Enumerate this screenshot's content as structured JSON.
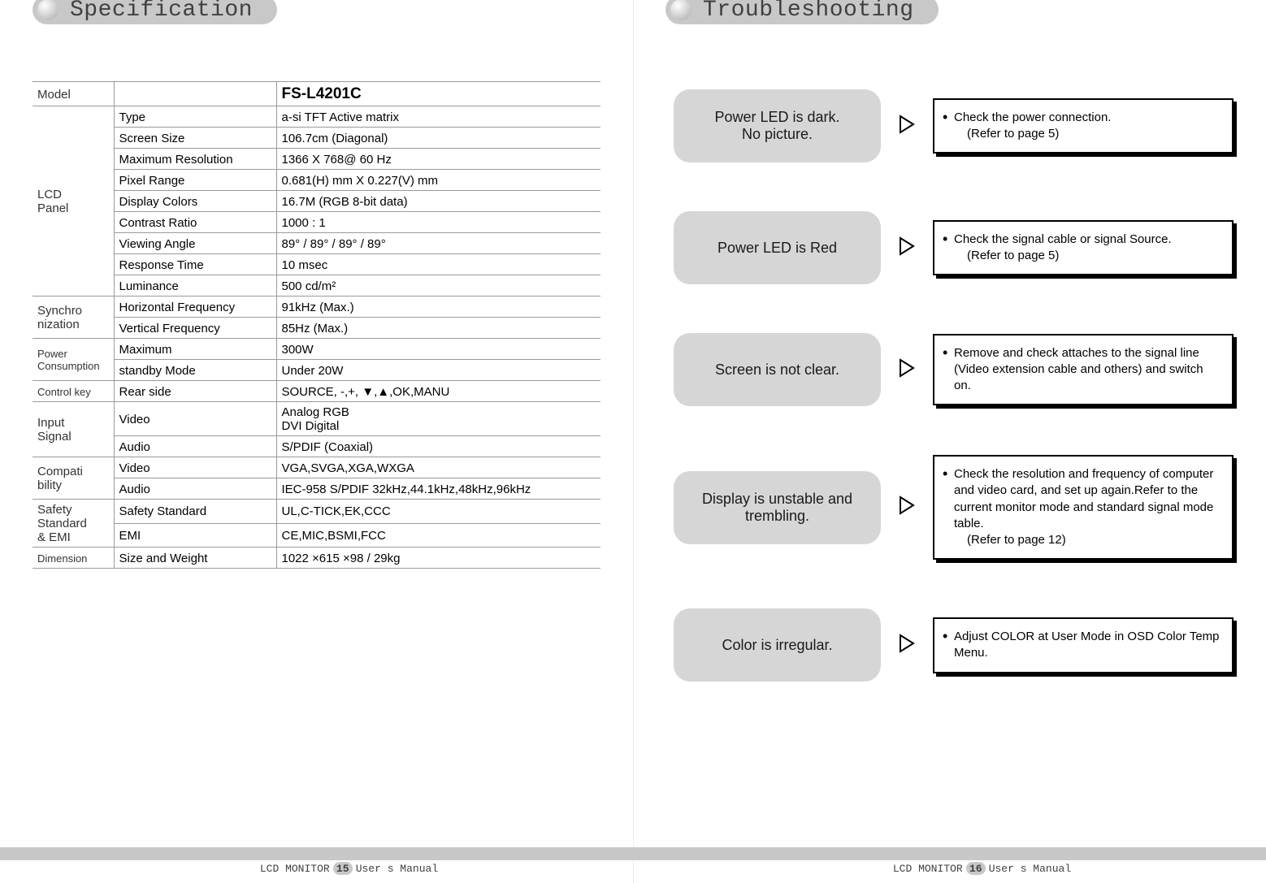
{
  "colors": {
    "pill_bg": "#c8c8c8",
    "text": "#000000",
    "panel_bg": "#d6d6d6",
    "border": "#9a9a9a",
    "page_bg": "#ffffff"
  },
  "fonts": {
    "heading_family": "Courier New, monospace",
    "body_family": "Arial, Helvetica, sans-serif",
    "heading_size_pt": 21,
    "table_size_pt": 11,
    "panel_size_pt": 14,
    "box_size_pt": 11
  },
  "left": {
    "heading": "Specification",
    "table": {
      "model_label": "Model",
      "model_value": "FS-L4201C",
      "groups": [
        {
          "category": "LCD\nPanel",
          "category_class": "",
          "rows": [
            {
              "label": "Type",
              "value": "a-si TFT Active matrix"
            },
            {
              "label": "Screen Size",
              "value": "106.7cm (Diagonal)"
            },
            {
              "label": "Maximum Resolution",
              "value": "1366 X 768@ 60 Hz"
            },
            {
              "label": "Pixel Range",
              "value": "0.681(H) mm X 0.227(V) mm"
            },
            {
              "label": "Display Colors",
              "value": "16.7M (RGB 8-bit data)"
            },
            {
              "label": "Contrast Ratio",
              "value": "1000 : 1"
            },
            {
              "label": "Viewing Angle",
              "value": "89° / 89° / 89° / 89°"
            },
            {
              "label": "Response Time",
              "value": "10 msec"
            },
            {
              "label": "Luminance",
              "value": "500 cd/m²"
            }
          ]
        },
        {
          "category": "Synchro\nnization",
          "category_class": "",
          "rows": [
            {
              "label": "Horizontal Frequency",
              "value": "91kHz (Max.)"
            },
            {
              "label": "Vertical Frequency",
              "value": "85Hz (Max.)"
            }
          ]
        },
        {
          "category": "Power\nConsumption",
          "category_class": "small",
          "rows": [
            {
              "label": "Maximum",
              "value": "300W"
            },
            {
              "label": "standby Mode",
              "value": "Under 20W"
            }
          ]
        },
        {
          "category": "Control key",
          "category_class": "small",
          "rows": [
            {
              "label": "Rear side",
              "value": "SOURCE, -,+, ▼,▲,OK,MANU"
            }
          ]
        },
        {
          "category": "Input\nSignal",
          "category_class": "",
          "rows": [
            {
              "label": "Video",
              "value": "Analog RGB\nDVI Digital"
            },
            {
              "label": "Audio",
              "value": "S/PDIF (Coaxial)"
            }
          ]
        },
        {
          "category": "Compati\nbility",
          "category_class": "",
          "rows": [
            {
              "label": "Video",
              "value": "VGA,SVGA,XGA,WXGA"
            },
            {
              "label": "Audio",
              "value": "IEC-958 S/PDIF 32kHz,44.1kHz,48kHz,96kHz"
            }
          ]
        },
        {
          "category": "Safety\nStandard\n& EMI",
          "category_class": "",
          "rows": [
            {
              "label": "Safety Standard",
              "value": "UL,C-TICK,EK,CCC"
            },
            {
              "label": "EMI",
              "value": "CE,MIC,BSMI,FCC"
            }
          ]
        },
        {
          "category": "Dimension",
          "category_class": "small",
          "rows": [
            {
              "label": "Size and Weight",
              "value": "1022 ×615 ×98 / 29kg"
            }
          ]
        }
      ]
    },
    "footer_prefix": "LCD  MONITOR",
    "footer_page": "15",
    "footer_suffix": "User s Manual"
  },
  "right": {
    "heading": "Troubleshooting",
    "items": [
      {
        "problem": "Power LED is dark.\nNo picture.",
        "solutions": [
          {
            "text": "Check the power connection.",
            "ref": "(Refer to page 5)"
          }
        ]
      },
      {
        "problem": "Power LED is Red",
        "solutions": [
          {
            "text": "Check the signal cable or signal Source.",
            "ref": "(Refer to page 5)"
          }
        ]
      },
      {
        "problem": "Screen is not clear.",
        "solutions": [
          {
            "text": "Remove and check attaches to the signal line (Video extension cable and others) and switch on.",
            "ref": ""
          }
        ]
      },
      {
        "problem": "Display is unstable and\ntrembling.",
        "solutions": [
          {
            "text": "Check the resolution and frequency of computer and video card, and set up again.Refer to the current monitor mode and standard signal mode table.",
            "ref": "(Refer to page 12)"
          }
        ]
      },
      {
        "problem": "Color is irregular.",
        "solutions": [
          {
            "text": "Adjust COLOR at User Mode in OSD Color Temp Menu.",
            "ref": ""
          }
        ]
      }
    ],
    "footer_prefix": "LCD  MONITOR",
    "footer_page": "16",
    "footer_suffix": "User s Manual"
  }
}
